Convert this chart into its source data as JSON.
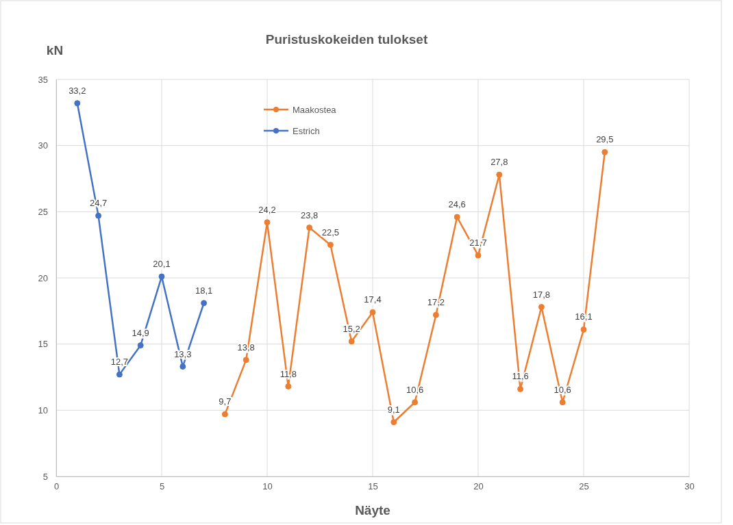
{
  "chart_data": {
    "type": "line",
    "title": "Puristuskokeiden tulokset",
    "xlabel": "Näyte",
    "ylabel": "kN",
    "xlim": [
      0,
      30
    ],
    "xticks": [
      0,
      5,
      10,
      15,
      20,
      25,
      30
    ],
    "ylim": [
      5,
      35
    ],
    "yticks": [
      5,
      10,
      15,
      20,
      25,
      30,
      35
    ],
    "grid": true,
    "legend": "top",
    "marker": "circle",
    "line_style": "solid",
    "series": [
      {
        "name": "Maakostea",
        "color": "#ed7d31",
        "x": [
          8,
          9,
          10,
          11,
          12,
          13,
          14,
          15,
          16,
          17,
          18,
          19,
          20,
          21,
          22,
          23,
          24,
          25,
          26
        ],
        "values": [
          9.7,
          13.8,
          24.2,
          11.8,
          23.8,
          22.5,
          15.2,
          17.4,
          9.1,
          10.6,
          17.2,
          24.6,
          21.7,
          27.8,
          11.6,
          17.8,
          10.6,
          16.1,
          29.5
        ],
        "value_labels": [
          "9,7",
          "13,8",
          "24,2",
          "11,8",
          "23,8",
          "22,5",
          "15,2",
          "17,4",
          "9,1",
          "10,6",
          "17,2",
          "24,6",
          "21,7",
          "27,8",
          "11,6",
          "17,8",
          "10,6",
          "16,1",
          "29,5"
        ]
      },
      {
        "name": "Estrich",
        "color": "#4472c4",
        "x": [
          1,
          2,
          3,
          4,
          5,
          6,
          7
        ],
        "values": [
          33.2,
          24.7,
          12.7,
          14.9,
          20.1,
          13.3,
          18.1
        ],
        "value_labels": [
          "33,2",
          "24,7",
          "12,7",
          "14,9",
          "20,1",
          "13,3",
          "18,1"
        ]
      }
    ]
  }
}
